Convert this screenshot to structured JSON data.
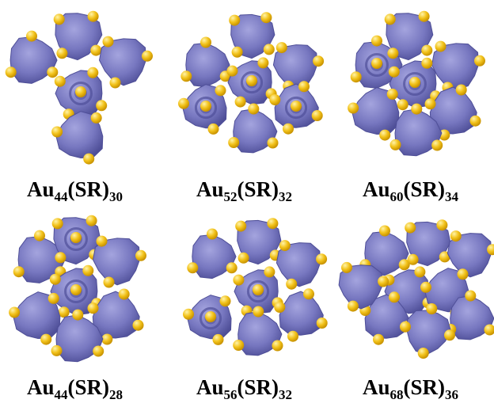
{
  "colors": {
    "lobe_fill": "#7777c0",
    "lobe_dark": "#4f4f98",
    "lobe_light": "#a4a4de",
    "sulfur": "#f2c21a",
    "sulfur_dark": "#c89200",
    "background": "#ffffff"
  },
  "panels": [
    {
      "id": "au44-sr30",
      "formula": {
        "element": "Au",
        "au_count": "44",
        "ligand": "(SR)",
        "ligand_count": "30"
      }
    },
    {
      "id": "au52-sr32",
      "formula": {
        "element": "Au",
        "au_count": "52",
        "ligand": "(SR)",
        "ligand_count": "32"
      }
    },
    {
      "id": "au60-sr34",
      "formula": {
        "element": "Au",
        "au_count": "60",
        "ligand": "(SR)",
        "ligand_count": "34"
      }
    },
    {
      "id": "au44-sr28",
      "formula": {
        "element": "Au",
        "au_count": "44",
        "ligand": "(SR)",
        "ligand_count": "28"
      }
    },
    {
      "id": "au56-sr32",
      "formula": {
        "element": "Au",
        "au_count": "56",
        "ligand": "(SR)",
        "ligand_count": "32"
      }
    },
    {
      "id": "au68-sr36",
      "formula": {
        "element": "Au",
        "au_count": "68",
        "ligand": "(SR)",
        "ligand_count": "36"
      }
    }
  ]
}
